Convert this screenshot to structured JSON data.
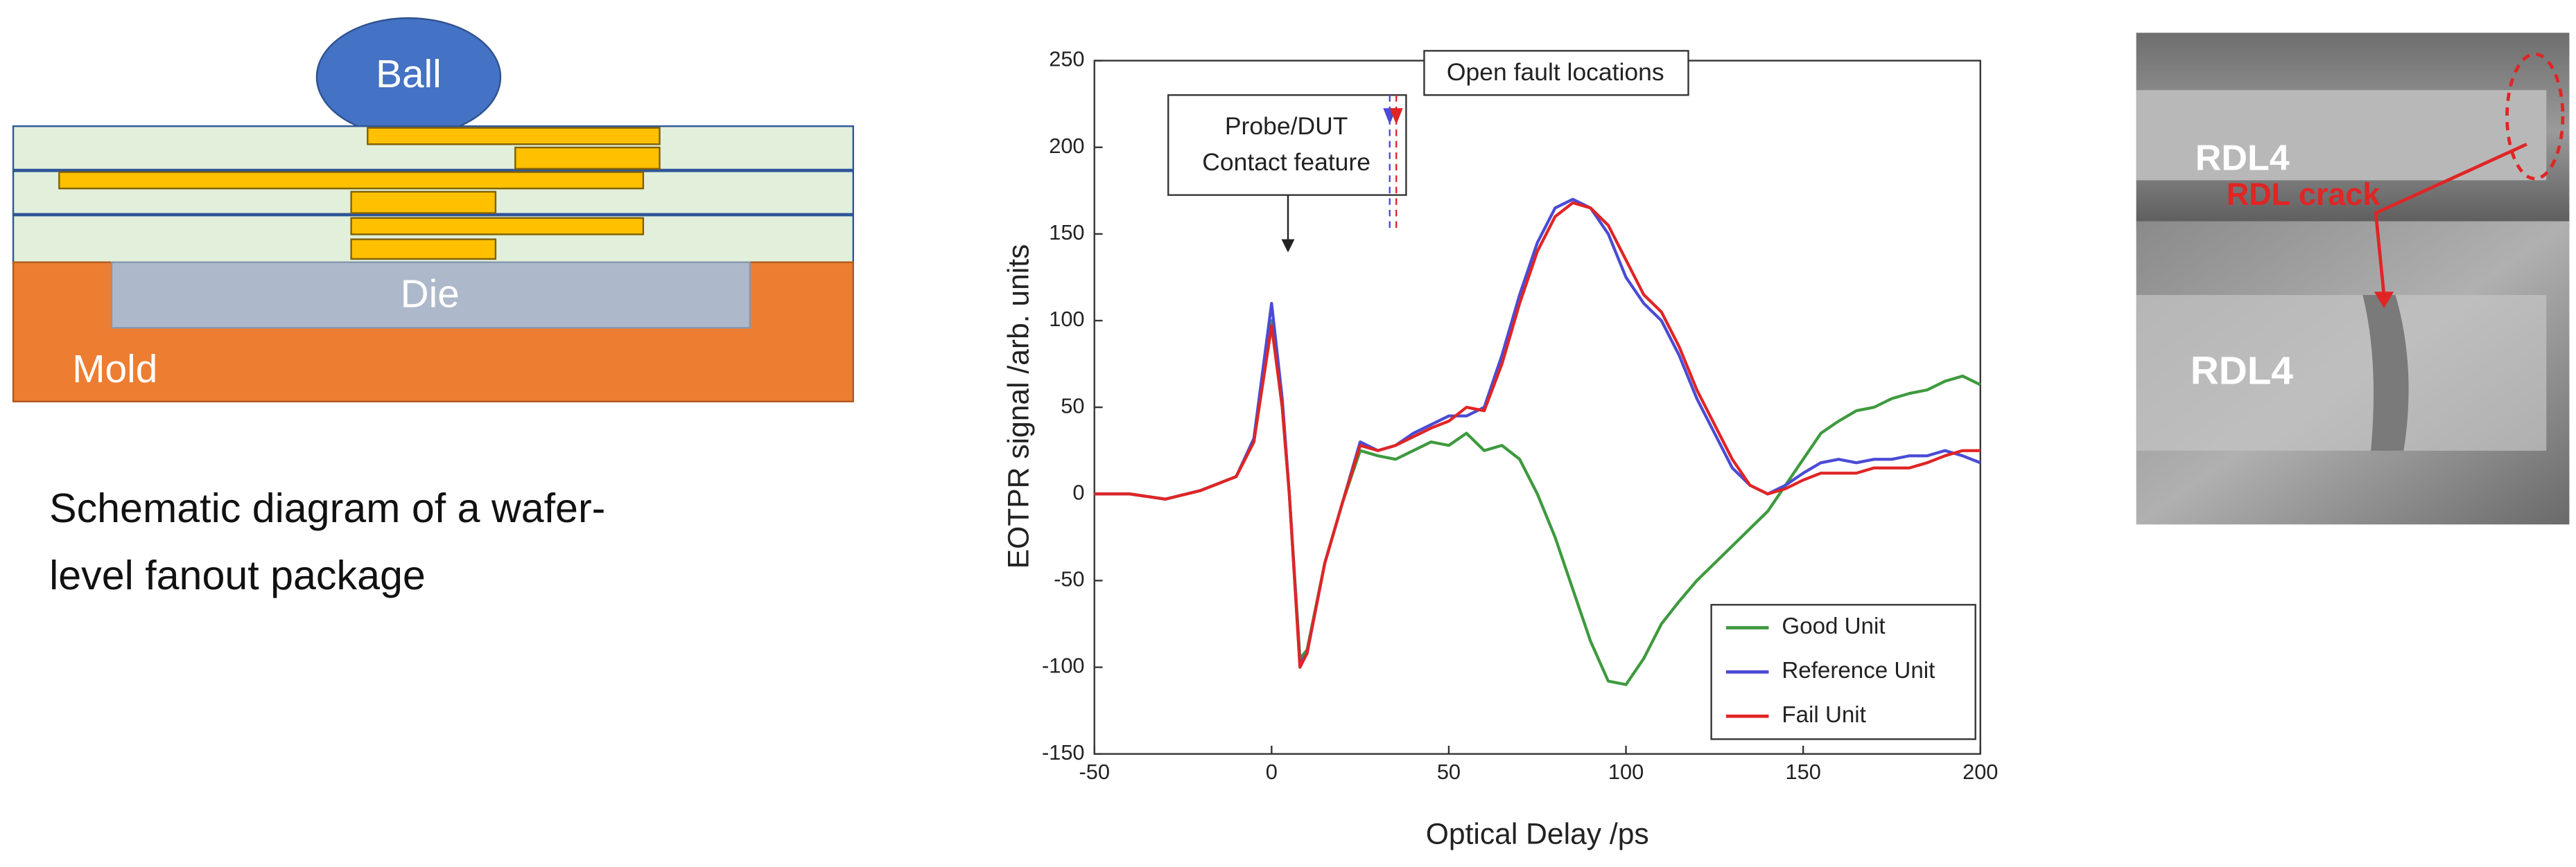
{
  "diagram": {
    "labels": {
      "ball": "Ball",
      "die": "Die",
      "mold": "Mold"
    },
    "caption": [
      "Schematic diagram of a wafer-",
      "level fanout package"
    ]
  },
  "chart_data": {
    "type": "line",
    "x_label": "Optical Delay /ps",
    "y_label": "EOTPR signal /arb. units",
    "annotations": {
      "contact": [
        "Probe/DUT",
        "Contact feature"
      ],
      "fault": "Open fault locations"
    },
    "x": [
      -50,
      -40,
      -30,
      -20,
      -10,
      -5,
      0,
      3,
      5,
      8,
      10,
      15,
      20,
      25,
      30,
      35,
      40,
      45,
      50,
      55,
      60,
      65,
      70,
      75,
      80,
      85,
      90,
      95,
      100,
      105,
      110,
      115,
      120,
      125,
      130,
      135,
      140,
      145,
      150,
      155,
      160,
      165,
      170,
      175,
      180,
      185,
      190,
      195,
      200
    ],
    "series": [
      {
        "name": "Good Unit",
        "color": "#3e9a3e",
        "values": [
          0,
          0,
          -3,
          2,
          10,
          30,
          100,
          50,
          0,
          -95,
          -90,
          -40,
          -5,
          25,
          22,
          20,
          25,
          30,
          28,
          35,
          25,
          28,
          20,
          0,
          -25,
          -55,
          -85,
          -108,
          -110,
          -95,
          -75,
          -62,
          -50,
          -40,
          -30,
          -20,
          -10,
          5,
          20,
          35,
          42,
          48,
          50,
          55,
          58,
          60,
          65,
          68,
          63
        ]
      },
      {
        "name": "Reference Unit",
        "color": "#4b4bd6",
        "values": [
          0,
          0,
          -3,
          2,
          10,
          32,
          110,
          55,
          0,
          -98,
          -92,
          -40,
          -5,
          30,
          25,
          28,
          35,
          40,
          45,
          45,
          50,
          80,
          115,
          145,
          165,
          170,
          165,
          150,
          125,
          110,
          100,
          80,
          55,
          35,
          15,
          5,
          0,
          5,
          12,
          18,
          20,
          18,
          20,
          20,
          22,
          22,
          25,
          22,
          18
        ]
      },
      {
        "name": "Fail Unit",
        "color": "#e02525",
        "values": [
          0,
          0,
          -3,
          2,
          10,
          30,
          97,
          50,
          0,
          -100,
          -92,
          -40,
          -5,
          28,
          25,
          28,
          33,
          38,
          42,
          50,
          48,
          75,
          110,
          140,
          160,
          168,
          165,
          155,
          135,
          115,
          105,
          85,
          60,
          40,
          20,
          5,
          0,
          3,
          8,
          12,
          12,
          12,
          15,
          15,
          15,
          18,
          22,
          25,
          25
        ]
      }
    ],
    "xlim": [
      -50,
      200
    ],
    "xticks": [
      -50,
      0,
      50,
      100,
      150,
      200
    ],
    "ylim": [
      -150,
      250
    ],
    "yticks": [
      -150,
      -100,
      -50,
      0,
      50,
      100,
      150,
      200,
      250
    ],
    "legend": "lower right",
    "grid": false
  },
  "image": {
    "labels": {
      "top": "RDL4",
      "crack": "RDL crack",
      "bottom": "RDL4"
    }
  }
}
